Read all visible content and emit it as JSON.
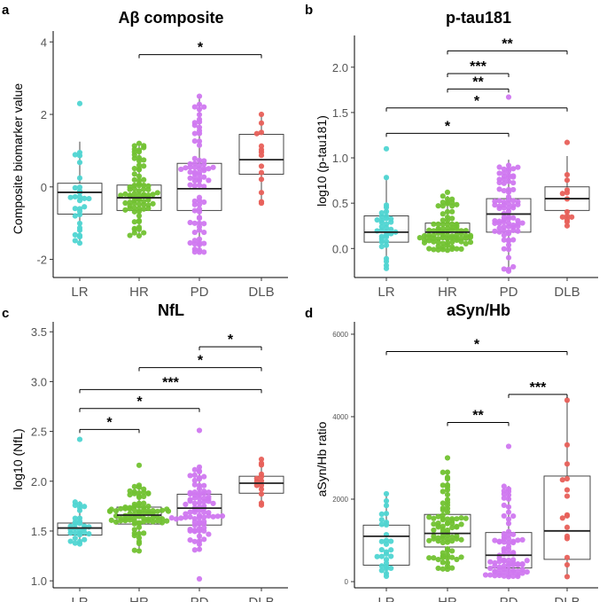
{
  "colors": {
    "LR": "#4fd5d2",
    "HR": "#72c232",
    "PD": "#d078f0",
    "DLB": "#e8605a"
  },
  "chart_data": [
    {
      "panel": "a",
      "type": "box+beeswarm",
      "title": "Aβ composite",
      "ylabel": "Composite biomarker value",
      "categories": [
        "LR",
        "HR",
        "PD",
        "DLB"
      ],
      "ylim": [
        -2.5,
        4.3
      ],
      "yticks": [
        {
          "v": 4,
          "label": "4"
        },
        {
          "v": 2,
          "label": "2"
        },
        {
          "v": 0,
          "label": "0"
        },
        {
          "v": -2,
          "label": "-2"
        }
      ],
      "boxes": [
        {
          "q1": -0.75,
          "median": -0.15,
          "q3": 0.1,
          "wlo": -1.55,
          "whi": 1.25
        },
        {
          "q1": -0.65,
          "median": -0.3,
          "q3": 0.05,
          "wlo": -1.35,
          "whi": 1.15
        },
        {
          "q1": -0.65,
          "median": -0.05,
          "q3": 0.65,
          "wlo": -1.8,
          "whi": 2.5
        },
        {
          "q1": 0.35,
          "median": 0.75,
          "q3": 1.45,
          "wlo": -0.45,
          "whi": 2.0
        }
      ],
      "counts": [
        30,
        80,
        80,
        14
      ],
      "points_range": [
        [
          -1.55,
          2.3
        ],
        [
          -1.35,
          1.2
        ],
        [
          -1.8,
          2.5
        ],
        [
          -0.45,
          2.0
        ]
      ],
      "brackets": [
        {
          "from": "HR",
          "to": "DLB",
          "y": 3.65,
          "label": "*"
        }
      ]
    },
    {
      "panel": "b",
      "type": "box+beeswarm",
      "title": "p-tau181",
      "ylabel": "log10 (p-tau181)",
      "categories": [
        "LR",
        "HR",
        "PD",
        "DLB"
      ],
      "ylim": [
        -0.32,
        2.35
      ],
      "yticks": [
        {
          "v": 2.0,
          "label": "2.0"
        },
        {
          "v": 1.5,
          "label": "1.5"
        },
        {
          "v": 1.0,
          "label": "1.0"
        },
        {
          "v": 0.5,
          "label": "0.5"
        },
        {
          "v": 0.0,
          "label": "0.0"
        }
      ],
      "boxes": [
        {
          "q1": 0.07,
          "median": 0.18,
          "q3": 0.36,
          "wlo": -0.22,
          "whi": 0.8
        },
        {
          "q1": 0.1,
          "median": 0.18,
          "q3": 0.28,
          "wlo": -0.02,
          "whi": 0.58
        },
        {
          "q1": 0.18,
          "median": 0.38,
          "q3": 0.55,
          "wlo": -0.25,
          "whi": 0.98
        },
        {
          "q1": 0.42,
          "median": 0.55,
          "q3": 0.68,
          "wlo": 0.25,
          "whi": 1.02
        }
      ],
      "counts": [
        35,
        85,
        85,
        14
      ],
      "points_range": [
        [
          -0.22,
          1.1
        ],
        [
          -0.02,
          0.62
        ],
        [
          -0.25,
          1.67
        ],
        [
          0.25,
          1.17
        ]
      ],
      "brackets": [
        {
          "from": "HR",
          "to": "DLB",
          "y": 2.18,
          "label": "**"
        },
        {
          "from": "HR",
          "to": "PD",
          "y": 1.93,
          "label": "***"
        },
        {
          "from": "HR",
          "to": "PD",
          "y": 1.76,
          "label": "**"
        },
        {
          "from": "LR",
          "to": "DLB",
          "y": 1.55,
          "label": "*"
        },
        {
          "from": "LR",
          "to": "PD",
          "y": 1.27,
          "label": "*"
        }
      ]
    },
    {
      "panel": "c",
      "type": "box+beeswarm",
      "title": "NfL",
      "ylabel": "log10 (NfL)",
      "categories": [
        "LR",
        "HR",
        "PD",
        "DLB"
      ],
      "ylim": [
        0.93,
        3.6
      ],
      "yticks": [
        {
          "v": 3.5,
          "label": "3.5"
        },
        {
          "v": 3.0,
          "label": "3.0"
        },
        {
          "v": 2.5,
          "label": "2.5"
        },
        {
          "v": 2.0,
          "label": "2.0"
        },
        {
          "v": 1.5,
          "label": "1.5"
        },
        {
          "v": 1.0,
          "label": "1.0"
        }
      ],
      "boxes": [
        {
          "q1": 1.46,
          "median": 1.53,
          "q3": 1.58,
          "wlo": 1.37,
          "whi": 1.8
        },
        {
          "q1": 1.57,
          "median": 1.66,
          "q3": 1.74,
          "wlo": 1.3,
          "whi": 1.96
        },
        {
          "q1": 1.56,
          "median": 1.73,
          "q3": 1.87,
          "wlo": 1.3,
          "whi": 2.15
        },
        {
          "q1": 1.88,
          "median": 1.98,
          "q3": 2.05,
          "wlo": 1.76,
          "whi": 2.22
        }
      ],
      "counts": [
        32,
        85,
        85,
        14
      ],
      "points_range": [
        [
          1.37,
          2.42
        ],
        [
          1.3,
          2.16
        ],
        [
          1.02,
          2.51
        ],
        [
          1.76,
          2.22
        ]
      ],
      "brackets": [
        {
          "from": "PD",
          "to": "DLB",
          "y": 3.35,
          "label": "*"
        },
        {
          "from": "HR",
          "to": "DLB",
          "y": 3.14,
          "label": "*"
        },
        {
          "from": "LR",
          "to": "DLB",
          "y": 2.92,
          "label": "***"
        },
        {
          "from": "LR",
          "to": "PD",
          "y": 2.73,
          "label": "*"
        },
        {
          "from": "LR",
          "to": "HR",
          "y": 2.52,
          "label": "*"
        }
      ]
    },
    {
      "panel": "d",
      "type": "box+beeswarm",
      "title": "aSyn/Hb",
      "ylabel": "aSyn/Hb ratio",
      "categories": [
        "LR",
        "HR",
        "PD",
        "DLB"
      ],
      "ylim": [
        -150,
        6300
      ],
      "yticks": [
        {
          "v": 6000,
          "label": "6000"
        },
        {
          "v": 4000,
          "label": "4000"
        },
        {
          "v": 2000,
          "label": "2000"
        },
        {
          "v": 0,
          "label": "0"
        }
      ],
      "boxes": [
        {
          "q1": 400,
          "median": 1100,
          "q3": 1370,
          "wlo": 130,
          "whi": 2130
        },
        {
          "q1": 840,
          "median": 1170,
          "q3": 1630,
          "wlo": 300,
          "whi": 2700
        },
        {
          "q1": 330,
          "median": 640,
          "q3": 1190,
          "wlo": 120,
          "whi": 2320
        },
        {
          "q1": 540,
          "median": 1230,
          "q3": 2560,
          "wlo": 120,
          "whi": 4400
        }
      ],
      "counts": [
        30,
        85,
        85,
        16
      ],
      "points_range": [
        [
          130,
          2130
        ],
        [
          300,
          3000
        ],
        [
          120,
          3280
        ],
        [
          120,
          4400
        ]
      ],
      "brackets": [
        {
          "from": "LR",
          "to": "DLB",
          "y": 5580,
          "label": "*"
        },
        {
          "from": "PD",
          "to": "DLB",
          "y": 4540,
          "label": "***"
        },
        {
          "from": "HR",
          "to": "PD",
          "y": 3860,
          "label": "**"
        }
      ]
    }
  ]
}
